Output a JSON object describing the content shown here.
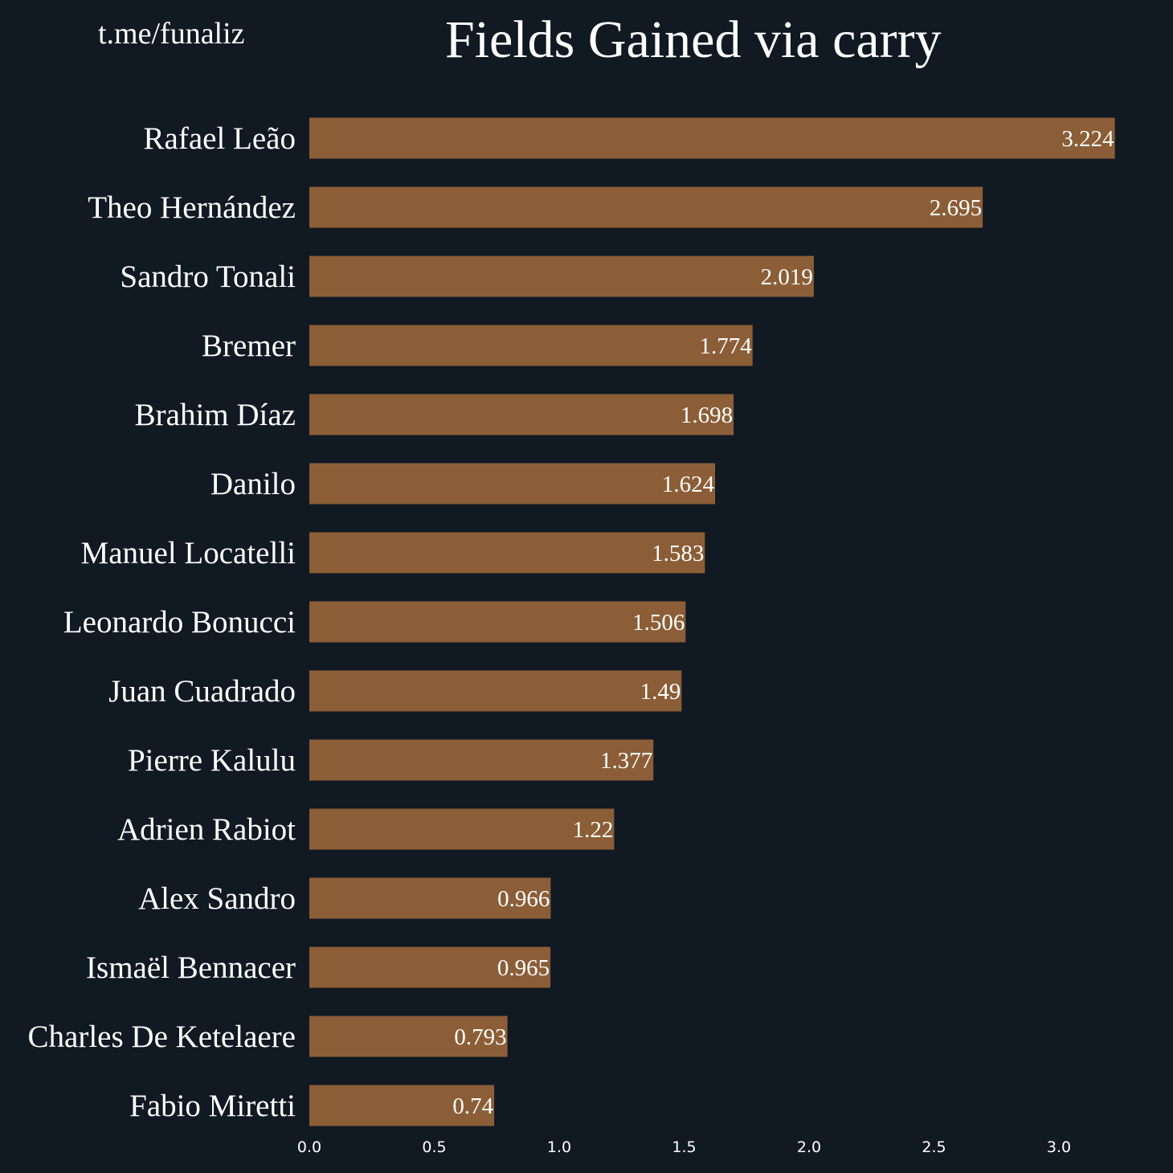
{
  "header": {
    "watermark": "t.me/funaliz",
    "title": "Fields Gained via carry"
  },
  "colors": {
    "background": "#111923",
    "bar": "#8b5e37",
    "text": "#ffffff"
  },
  "chart_data": {
    "type": "bar",
    "orientation": "horizontal",
    "title": "Fields Gained via carry",
    "xlabel": "",
    "ylabel": "",
    "xlim": [
      0,
      3.3
    ],
    "xticks": [
      0.0,
      0.5,
      1.0,
      1.5,
      2.0,
      2.5,
      3.0
    ],
    "xtick_labels": [
      "0.0",
      "0.5",
      "1.0",
      "1.5",
      "2.0",
      "2.5",
      "3.0"
    ],
    "grid": false,
    "categories": [
      "Rafael Leão",
      "Theo Hernández",
      "Sandro Tonali",
      "Bremer",
      "Brahim Díaz",
      "Danilo",
      "Manuel Locatelli",
      "Leonardo Bonucci",
      "Juan Cuadrado",
      "Pierre Kalulu",
      "Adrien Rabiot",
      "Alex Sandro",
      "Ismaël Bennacer",
      "Charles De Ketelaere",
      "Fabio Miretti"
    ],
    "values": [
      3.224,
      2.695,
      2.019,
      1.774,
      1.698,
      1.624,
      1.583,
      1.506,
      1.49,
      1.377,
      1.22,
      0.966,
      0.965,
      0.793,
      0.74
    ],
    "value_labels": [
      "3.224",
      "2.695",
      "2.019",
      "1.774",
      "1.698",
      "1.624",
      "1.583",
      "1.506",
      "1.49",
      "1.377",
      "1.22",
      "0.966",
      "0.965",
      "0.793",
      "0.74"
    ]
  }
}
